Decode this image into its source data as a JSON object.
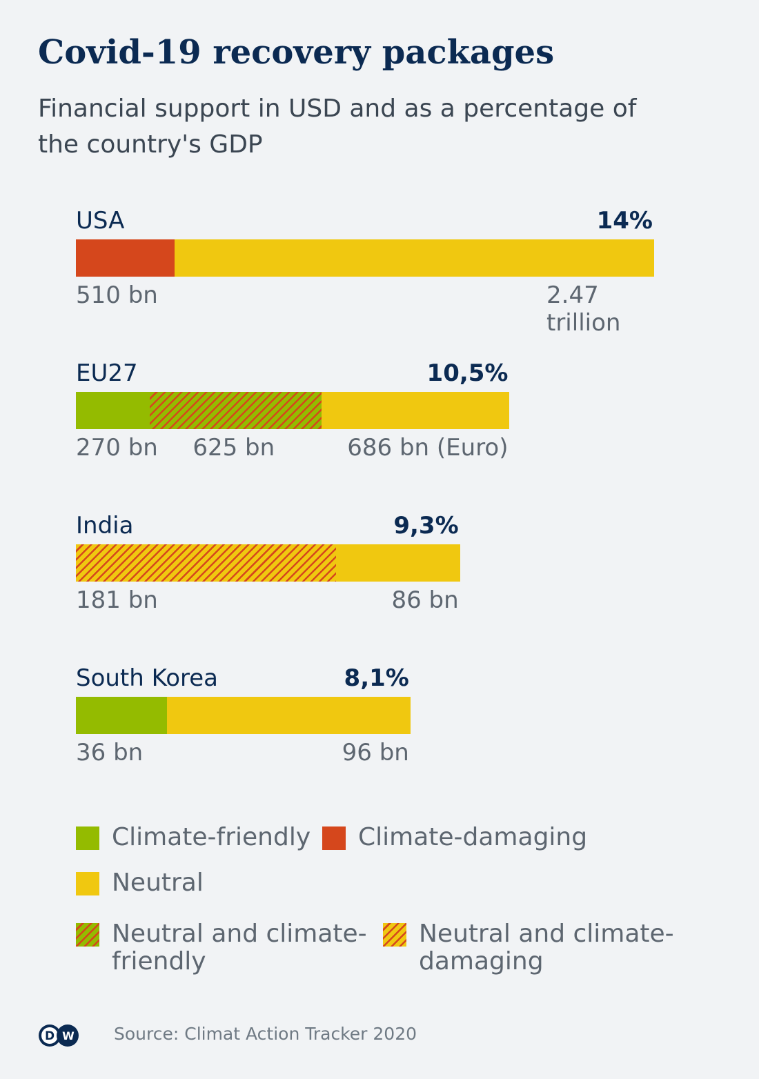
{
  "chart_data": {
    "type": "bar",
    "title": "Covid-19 recovery packages",
    "subtitle": "Financial support in USD and as a percentage of the country's GDP",
    "colors": {
      "Climate-friendly": "#94bb00",
      "Climate-damaging": "#d5471c",
      "Neutral": "#f0c810"
    },
    "categories": [
      "USA",
      "EU27",
      "India",
      "South Korea"
    ],
    "percent_labels": [
      "14%",
      "10,5%",
      "9,3%",
      "8,1%"
    ],
    "percent_values": [
      14,
      10.5,
      9.3,
      8.1
    ],
    "bars": [
      {
        "country": "USA",
        "pct_label": "14%",
        "pct": 14,
        "segments": [
          {
            "type": "Climate-damaging",
            "value": 510,
            "label": "510 bn"
          },
          {
            "type": "Neutral",
            "value": 2470,
            "label": "2.47 trillion"
          }
        ]
      },
      {
        "country": "EU27",
        "pct_label": "10,5%",
        "pct": 10.5,
        "segments": [
          {
            "type": "Climate-friendly",
            "value": 270,
            "label": "270 bn"
          },
          {
            "type": "Neutral and climate-friendly",
            "value": 625,
            "label": "625 bn"
          },
          {
            "type": "Neutral",
            "value": 686,
            "label": "686 bn (Euro)"
          }
        ]
      },
      {
        "country": "India",
        "pct_label": "9,3%",
        "pct": 9.3,
        "segments": [
          {
            "type": "Neutral and climate-damaging",
            "value": 181,
            "label": "181 bn"
          },
          {
            "type": "Neutral",
            "value": 86,
            "label": "86 bn"
          }
        ]
      },
      {
        "country": "South Korea",
        "pct_label": "8,1%",
        "pct": 8.1,
        "segments": [
          {
            "type": "Climate-friendly",
            "value": 36,
            "label": "36 bn"
          },
          {
            "type": "Neutral",
            "value": 96,
            "label": "96 bn"
          }
        ]
      }
    ],
    "legend": [
      "Climate-friendly",
      "Climate-damaging",
      "Neutral",
      "Neutral and climate-friendly",
      "Neutral and climate-damaging"
    ],
    "legend_lines": [
      [
        "Climate-friendly"
      ],
      [
        "Climate-damaging"
      ],
      [
        "Neutral"
      ],
      [
        "Neutral and climate-",
        "friendly"
      ],
      [
        "Neutral and climate-",
        "damaging"
      ]
    ],
    "source": "Source: Climat Action Tracker 2020",
    "logo": "DW"
  }
}
